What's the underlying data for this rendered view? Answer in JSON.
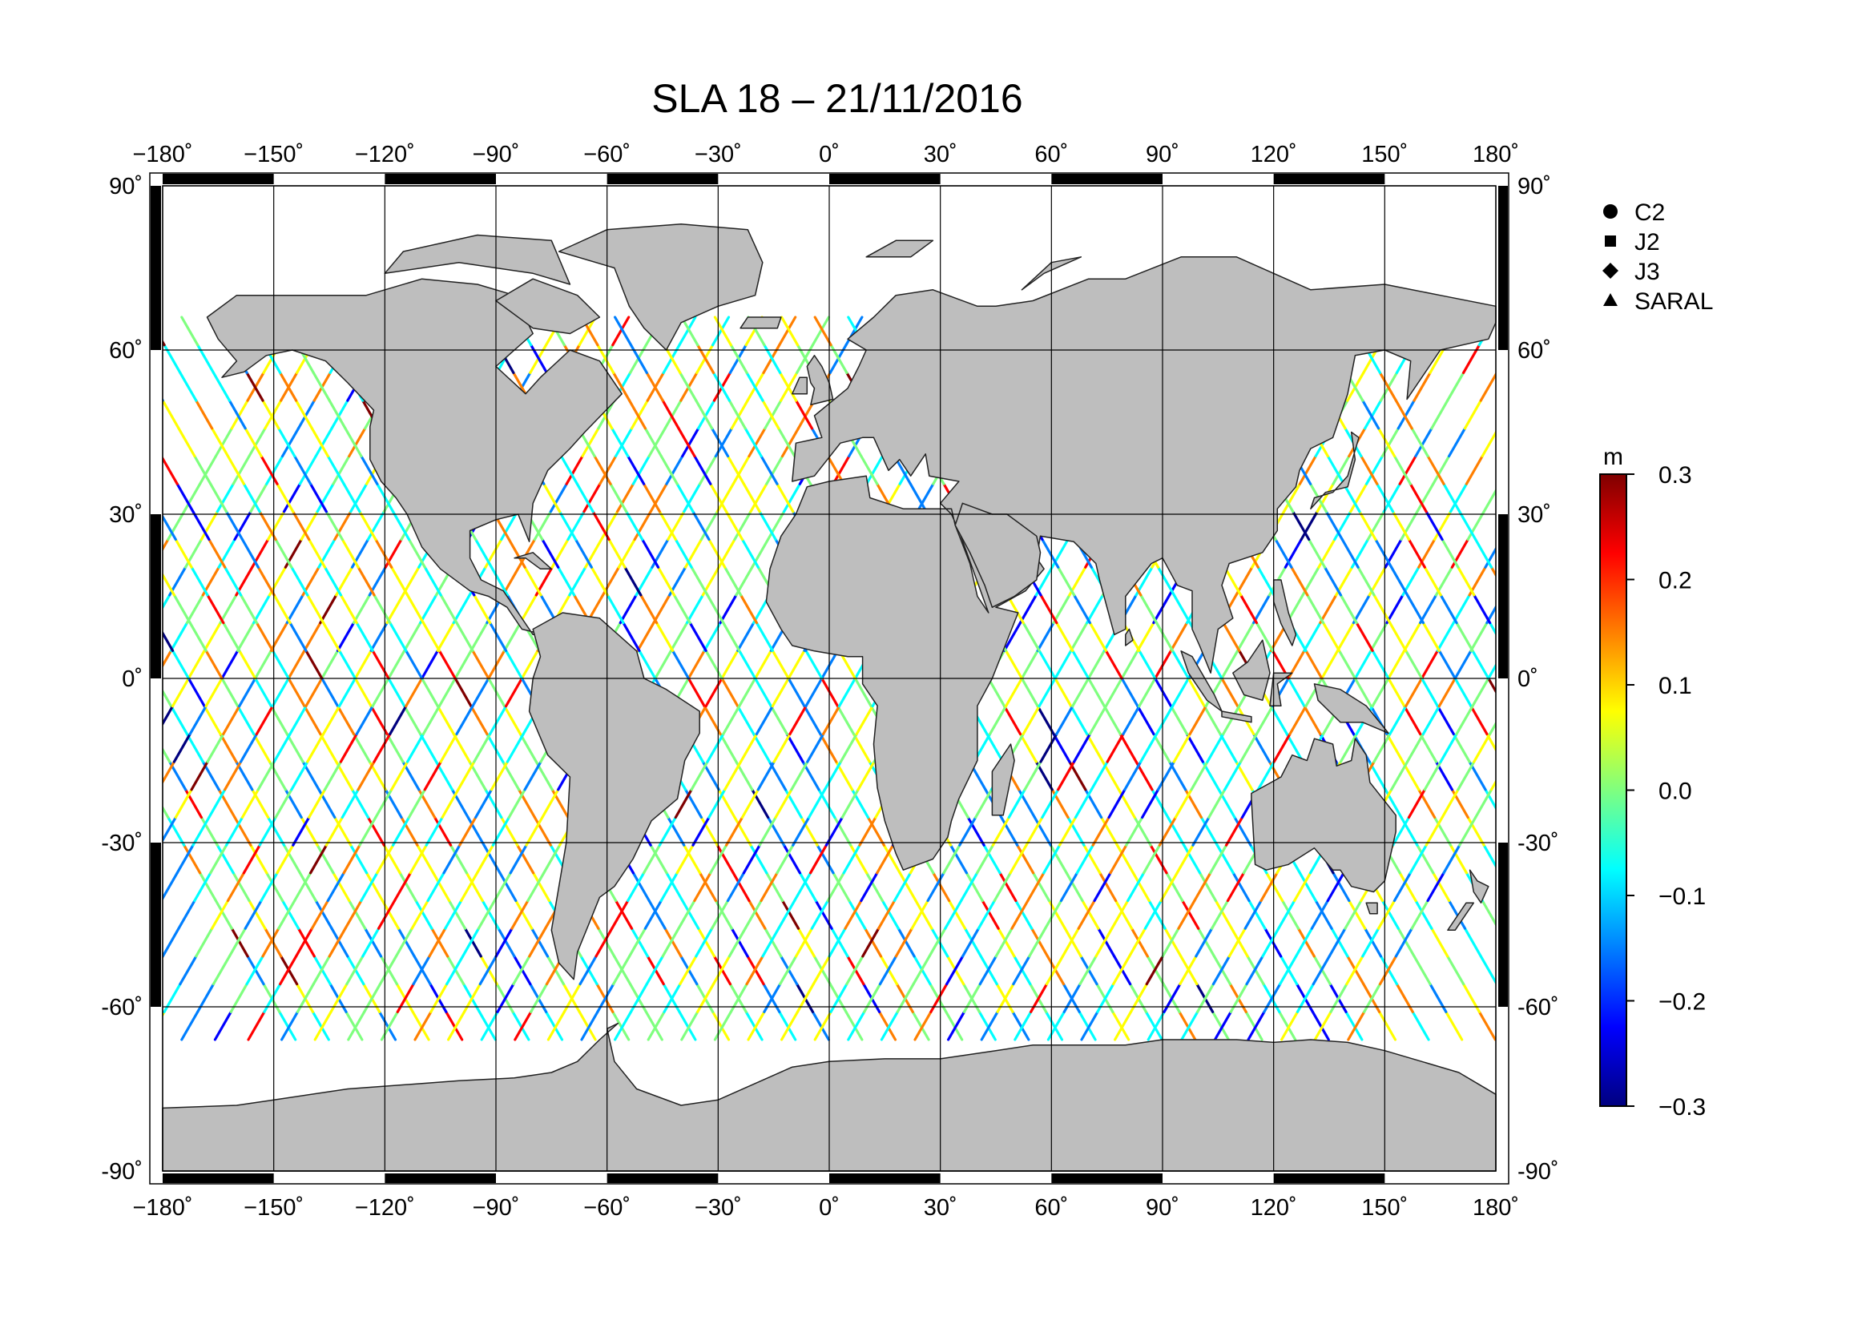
{
  "title": "SLA 18 – 21/11/2016",
  "map": {
    "lon_ticks": [
      {
        "value": -180,
        "label": "−180˚"
      },
      {
        "value": -150,
        "label": "−150˚"
      },
      {
        "value": -120,
        "label": "−120˚"
      },
      {
        "value": -90,
        "label": "−90˚"
      },
      {
        "value": -60,
        "label": "−60˚"
      },
      {
        "value": -30,
        "label": "−30˚"
      },
      {
        "value": 0,
        "label": "0˚"
      },
      {
        "value": 30,
        "label": "30˚"
      },
      {
        "value": 60,
        "label": "60˚"
      },
      {
        "value": 90,
        "label": "90˚"
      },
      {
        "value": 120,
        "label": "120˚"
      },
      {
        "value": 150,
        "label": "150˚"
      },
      {
        "value": 180,
        "label": "180˚"
      }
    ],
    "lat_ticks_left": [
      {
        "value": 90,
        "label": "90˚"
      },
      {
        "value": 60,
        "label": "60˚"
      },
      {
        "value": 30,
        "label": "30˚"
      },
      {
        "value": 0,
        "label": "0˚"
      },
      {
        "value": -30,
        "label": "-30˚"
      },
      {
        "value": -60,
        "label": "-60˚"
      },
      {
        "value": -90,
        "label": "-90˚"
      }
    ],
    "lat_ticks_right": [
      {
        "value": 90,
        "label": "90˚"
      },
      {
        "value": 60,
        "label": "60˚"
      },
      {
        "value": 30,
        "label": "30˚"
      },
      {
        "value": 0,
        "label": "0˚"
      },
      {
        "value": -30,
        "label": "-30˚"
      },
      {
        "value": -60,
        "label": "-60˚"
      },
      {
        "value": -90,
        "label": "-90˚"
      }
    ],
    "land_color": "#bebebe",
    "ocean_color": "#ffffff"
  },
  "legend": [
    {
      "symbol": "circle",
      "label": "C2"
    },
    {
      "symbol": "square",
      "label": "J2"
    },
    {
      "symbol": "diamond",
      "label": "J3"
    },
    {
      "symbol": "triangle",
      "label": "SARAL"
    }
  ],
  "colorbar": {
    "unit": "m",
    "min": -0.3,
    "max": 0.3,
    "ticks": [
      {
        "value": 0.3,
        "label": "0.3"
      },
      {
        "value": 0.2,
        "label": "0.2"
      },
      {
        "value": 0.1,
        "label": "0.1"
      },
      {
        "value": 0.0,
        "label": "0.0"
      },
      {
        "value": -0.1,
        "label": "−0.1"
      },
      {
        "value": -0.2,
        "label": "−0.2"
      },
      {
        "value": -0.3,
        "label": "−0.3"
      }
    ],
    "colors": [
      "#00007f",
      "#0000ff",
      "#007fff",
      "#00ffff",
      "#7fff7f",
      "#ffff00",
      "#ff7f00",
      "#ff0000",
      "#7f0000"
    ]
  }
}
